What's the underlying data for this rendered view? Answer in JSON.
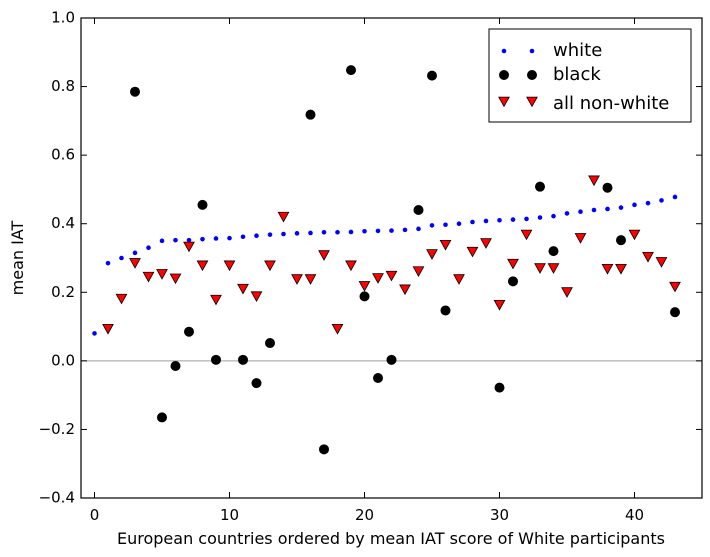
{
  "chart_data": {
    "type": "scatter",
    "title": "",
    "xlabel": "European countries ordered by mean IAT score of White participants",
    "ylabel": "mean IAT",
    "xlim": [
      -1,
      45
    ],
    "ylim": [
      -0.4,
      1.0
    ],
    "xticks": [
      0,
      10,
      20,
      30,
      40
    ],
    "xtick_labels": [
      "0",
      "10",
      "20",
      "30",
      "40"
    ],
    "yticks": [
      -0.4,
      -0.2,
      0.0,
      0.2,
      0.4,
      0.6,
      0.8,
      1.0
    ],
    "ytick_labels": [
      "−0.4",
      "−0.2",
      "0.0",
      "0.2",
      "0.4",
      "0.6",
      "0.8",
      "1.0"
    ],
    "reference_line_y": 0.0,
    "legend_position": "top-right",
    "grid": false,
    "series": [
      {
        "name": "white",
        "marker": "small-dot",
        "color": "#0000ff",
        "x": [
          0,
          1,
          2,
          3,
          4,
          5,
          6,
          7,
          8,
          9,
          10,
          11,
          12,
          13,
          14,
          15,
          16,
          17,
          18,
          19,
          20,
          21,
          22,
          23,
          24,
          25,
          26,
          27,
          28,
          29,
          30,
          31,
          32,
          33,
          34,
          35,
          36,
          37,
          38,
          39,
          40,
          41,
          42,
          43
        ],
        "y": [
          0.08,
          0.285,
          0.3,
          0.315,
          0.33,
          0.35,
          0.352,
          0.352,
          0.355,
          0.357,
          0.358,
          0.362,
          0.365,
          0.368,
          0.37,
          0.372,
          0.373,
          0.375,
          0.375,
          0.376,
          0.378,
          0.379,
          0.38,
          0.382,
          0.385,
          0.395,
          0.397,
          0.4,
          0.405,
          0.408,
          0.41,
          0.412,
          0.414,
          0.418,
          0.422,
          0.43,
          0.435,
          0.44,
          0.443,
          0.447,
          0.455,
          0.46,
          0.468,
          0.478
        ]
      },
      {
        "name": "black",
        "marker": "circle",
        "color": "#000000",
        "x": [
          3,
          5,
          6,
          7,
          8,
          9,
          11,
          12,
          13,
          16,
          17,
          19,
          20,
          21,
          22,
          24,
          25,
          26,
          30,
          31,
          33,
          34,
          38,
          39,
          43
        ],
        "y": [
          0.785,
          -0.165,
          -0.015,
          0.085,
          0.455,
          0.003,
          0.003,
          -0.065,
          0.052,
          0.718,
          -0.258,
          0.848,
          0.188,
          -0.05,
          0.003,
          0.44,
          0.832,
          0.147,
          -0.078,
          0.232,
          0.508,
          0.32,
          0.505,
          0.352,
          0.142
        ]
      },
      {
        "name": "all non-white",
        "marker": "triangle-down",
        "color": "#ff0000",
        "x": [
          1,
          2,
          3,
          4,
          5,
          6,
          7,
          8,
          9,
          10,
          11,
          12,
          13,
          14,
          15,
          16,
          17,
          18,
          19,
          20,
          21,
          22,
          23,
          24,
          25,
          26,
          27,
          28,
          29,
          30,
          31,
          32,
          33,
          34,
          35,
          36,
          37,
          38,
          39,
          40,
          41,
          42,
          43
        ],
        "y": [
          0.095,
          0.183,
          0.287,
          0.247,
          0.255,
          0.242,
          0.335,
          0.28,
          0.18,
          0.28,
          0.212,
          0.19,
          0.28,
          0.422,
          0.24,
          0.24,
          0.31,
          0.095,
          0.28,
          0.22,
          0.243,
          0.25,
          0.21,
          0.263,
          0.313,
          0.34,
          0.24,
          0.32,
          0.345,
          0.165,
          0.285,
          0.37,
          0.272,
          0.272,
          0.202,
          0.36,
          0.528,
          0.27,
          0.27,
          0.37,
          0.305,
          0.29,
          0.218
        ]
      }
    ]
  }
}
